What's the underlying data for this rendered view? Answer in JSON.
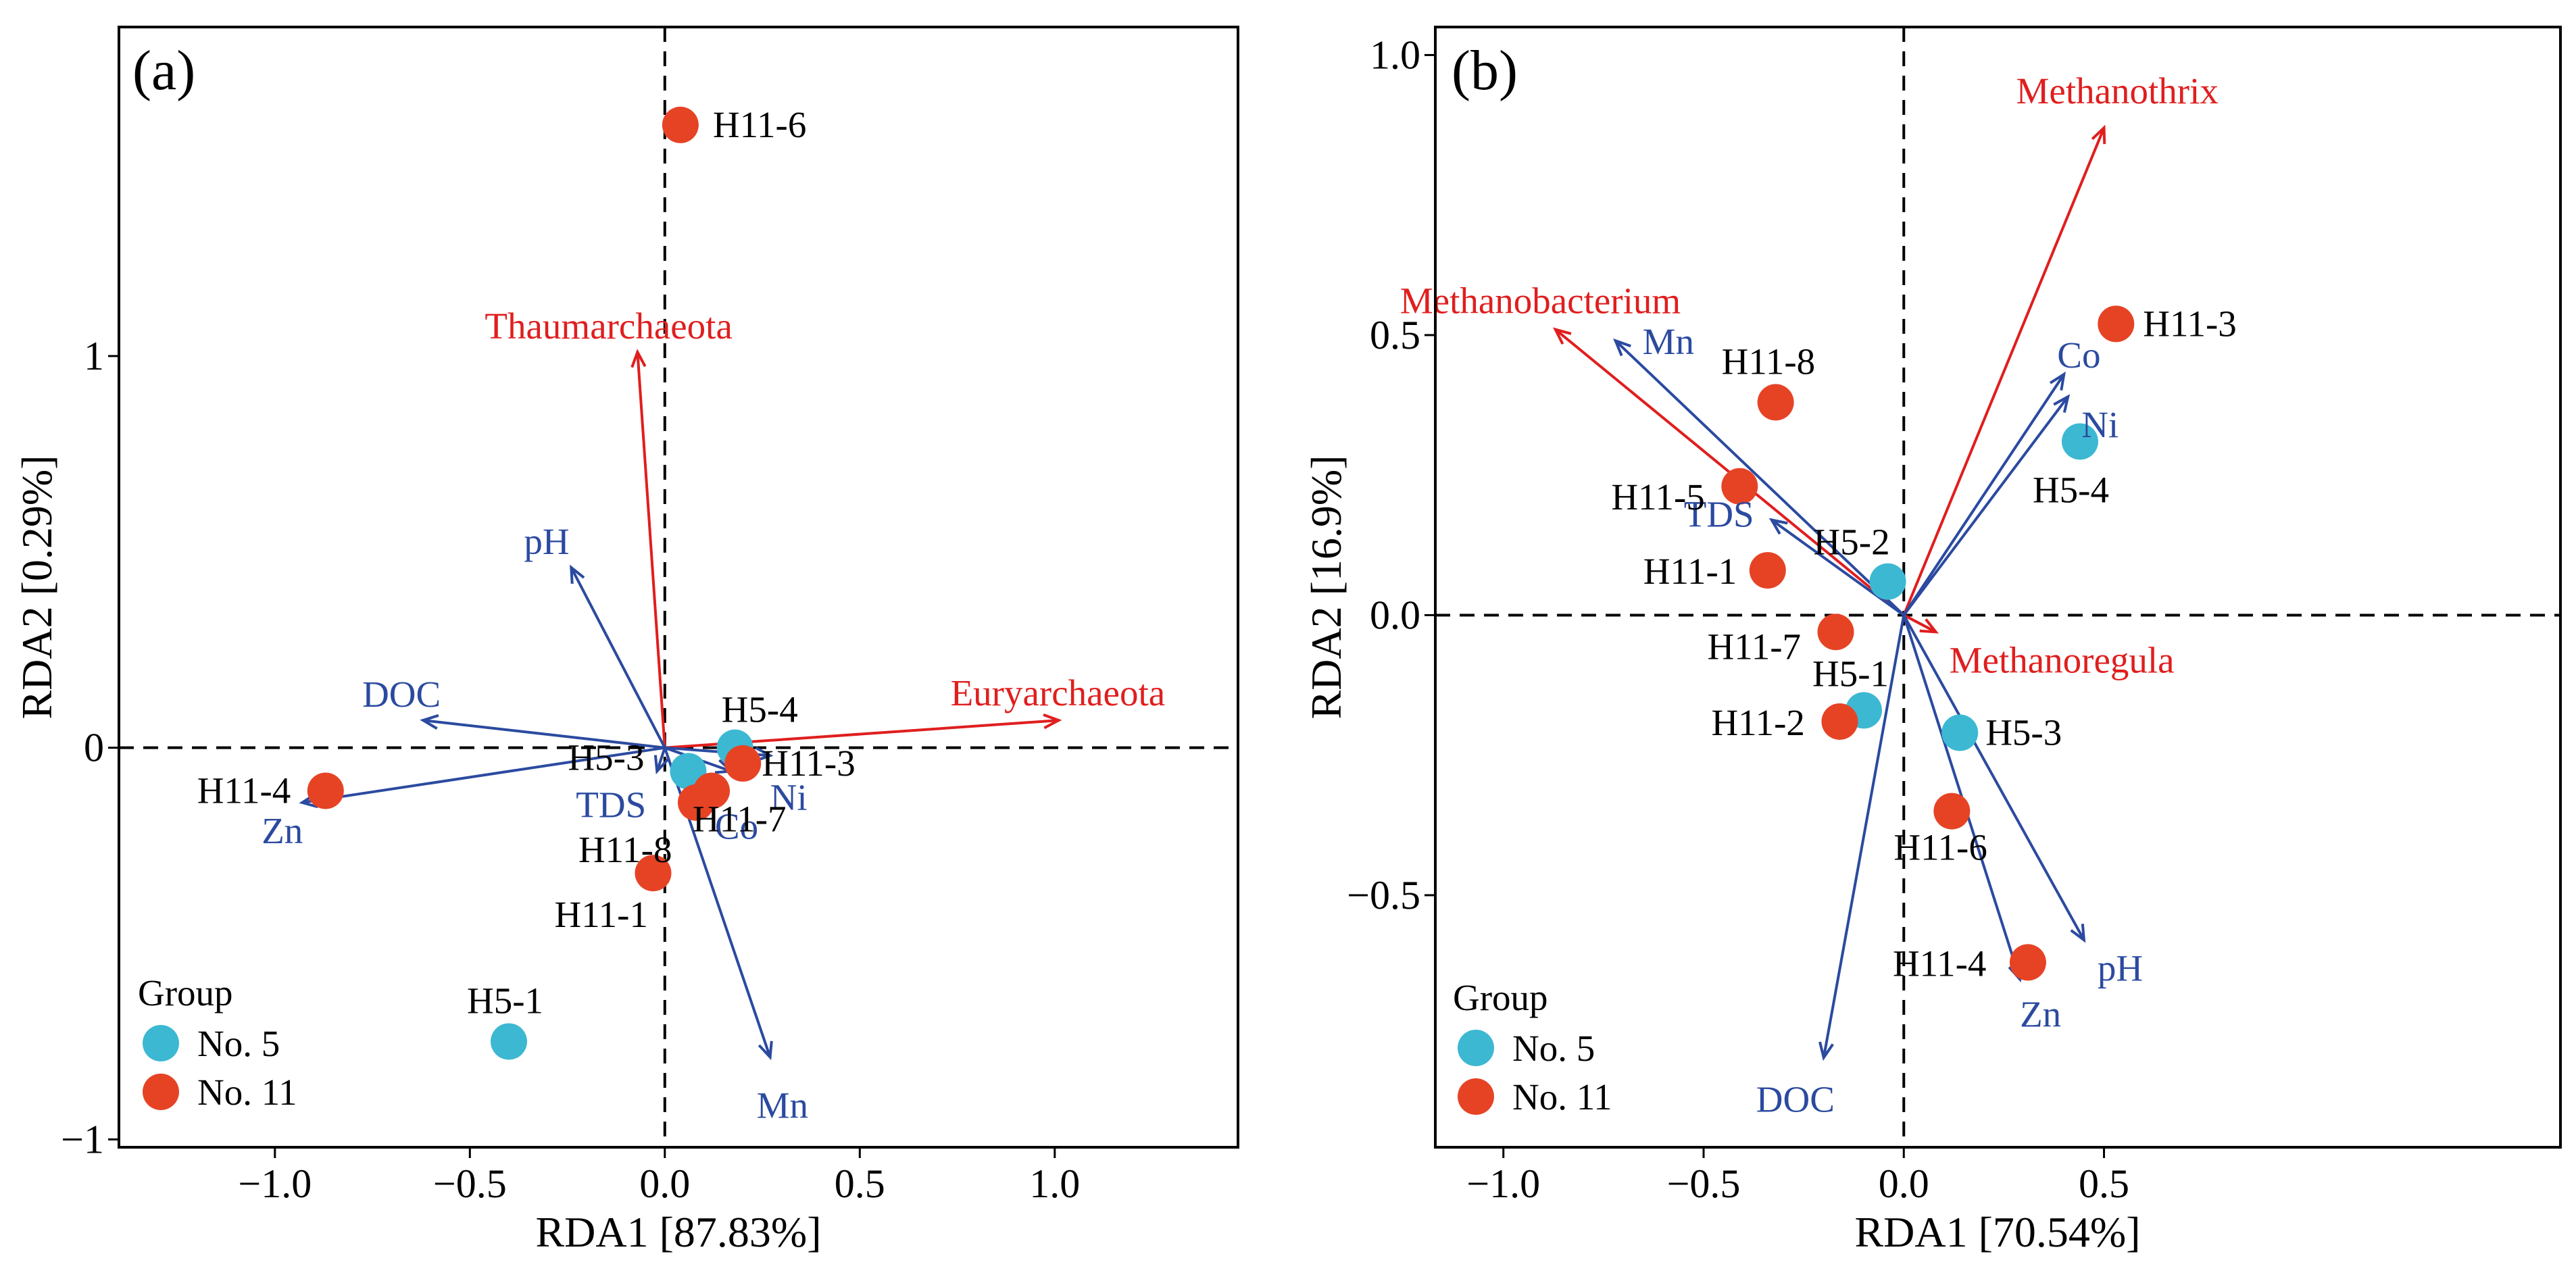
{
  "colors": {
    "group5": "#3cb8d2",
    "group11": "#e64325",
    "env_arrow": "#2b4aa0",
    "species_arrow": "#e01e1e",
    "background": "#ffffff",
    "axis": "#000000"
  },
  "chart_data": [
    {
      "type": "scatter",
      "subtype": "RDA biplot",
      "panel_label": "(a)",
      "xlabel": "RDA1 [87.83%]",
      "ylabel": "RDA2 [0.29%]",
      "xlim": [
        -1.4,
        1.47
      ],
      "ylim": [
        -1.02,
        1.84
      ],
      "xticks": [
        -1.0,
        -0.5,
        0.0,
        0.5,
        1.0
      ],
      "xtick_labels": [
        "−1.0",
        "−0.5",
        "0.0",
        "0.5",
        "1.0"
      ],
      "yticks": [
        -1,
        0,
        1
      ],
      "ytick_labels": [
        "−1",
        "0",
        "1"
      ],
      "points": [
        {
          "name": "H11-6",
          "group": "No. 11",
          "x": 0.04,
          "y": 1.59
        },
        {
          "name": "H5-4",
          "group": "No. 5",
          "x": 0.18,
          "y": 0.0
        },
        {
          "name": "H5-3",
          "group": "No. 5",
          "x": 0.06,
          "y": -0.06
        },
        {
          "name": "H11-3",
          "group": "No. 11",
          "x": 0.2,
          "y": -0.04
        },
        {
          "name": "H11-7",
          "group": "No. 11",
          "x": 0.12,
          "y": -0.11
        },
        {
          "name": "H11-8",
          "group": "No. 11",
          "x": 0.08,
          "y": -0.14
        },
        {
          "name": "H11-4",
          "group": "No. 11",
          "x": -0.87,
          "y": -0.11
        },
        {
          "name": "H11-1",
          "group": "No. 11",
          "x": -0.03,
          "y": -0.32
        },
        {
          "name": "H5-1",
          "group": "No. 5",
          "x": -0.4,
          "y": -0.75
        }
      ],
      "env_vectors": [
        {
          "name": "pH",
          "x": -0.24,
          "y": 0.46
        },
        {
          "name": "DOC",
          "x": -0.62,
          "y": 0.07
        },
        {
          "name": "Zn",
          "x": -0.93,
          "y": -0.14
        },
        {
          "name": "TDS",
          "x": -0.02,
          "y": -0.06
        },
        {
          "name": "Co",
          "x": 0.17,
          "y": -0.06
        },
        {
          "name": "Ni",
          "x": 0.27,
          "y": -0.02
        },
        {
          "name": "Mn",
          "x": 0.27,
          "y": -0.79
        }
      ],
      "species_vectors": [
        {
          "name": "Thaumarchaeota",
          "x": -0.07,
          "y": 1.01
        },
        {
          "name": "Euryarchaeota",
          "x": 1.01,
          "y": 0.07
        }
      ],
      "legend": {
        "title": "Group",
        "position": "bottom-left",
        "entries": [
          "No. 5",
          "No. 11"
        ]
      }
    },
    {
      "type": "scatter",
      "subtype": "RDA biplot",
      "panel_label": "(b)",
      "xlabel": "RDA1 [70.54%]",
      "ylabel": "RDA2 [16.9%]",
      "xlim": [
        -1.17,
        1.64
      ],
      "ylim": [
        -0.95,
        1.05
      ],
      "xticks": [
        -1.0,
        -0.5,
        0.0,
        0.5
      ],
      "xtick_labels": [
        "−1.0",
        "−0.5",
        "0.0",
        "0.5"
      ],
      "yticks": [
        -0.5,
        0.0,
        0.5,
        1.0
      ],
      "ytick_labels": [
        "−0.5",
        "0.0",
        "0.5",
        "1.0"
      ],
      "points": [
        {
          "name": "H11-3",
          "group": "No. 11",
          "x": 0.53,
          "y": 0.52
        },
        {
          "name": "H5-4",
          "group": "No. 5",
          "x": 0.44,
          "y": 0.31
        },
        {
          "name": "H11-8",
          "group": "No. 11",
          "x": -0.32,
          "y": 0.38
        },
        {
          "name": "H11-5",
          "group": "No. 11",
          "x": -0.41,
          "y": 0.23
        },
        {
          "name": "H11-1",
          "group": "No. 11",
          "x": -0.34,
          "y": 0.08
        },
        {
          "name": "H5-2",
          "group": "No. 5",
          "x": -0.04,
          "y": 0.06
        },
        {
          "name": "H11-7",
          "group": "No. 11",
          "x": -0.17,
          "y": -0.03
        },
        {
          "name": "H5-1",
          "group": "No. 5",
          "x": -0.1,
          "y": -0.17
        },
        {
          "name": "H11-2",
          "group": "No. 11",
          "x": -0.16,
          "y": -0.19
        },
        {
          "name": "H5-3",
          "group": "No. 5",
          "x": 0.14,
          "y": -0.21
        },
        {
          "name": "H11-6",
          "group": "No. 11",
          "x": 0.12,
          "y": -0.35
        },
        {
          "name": "H11-4",
          "group": "No. 11",
          "x": 0.31,
          "y": -0.62
        }
      ],
      "env_vectors": [
        {
          "name": "Mn",
          "x": -0.72,
          "y": 0.49
        },
        {
          "name": "TDS",
          "x": -0.33,
          "y": 0.17
        },
        {
          "name": "Co",
          "x": 0.4,
          "y": 0.43
        },
        {
          "name": "Ni",
          "x": 0.41,
          "y": 0.39
        },
        {
          "name": "pH",
          "x": 0.45,
          "y": -0.58
        },
        {
          "name": "Zn",
          "x": 0.29,
          "y": -0.65
        },
        {
          "name": "DOC",
          "x": -0.2,
          "y": -0.79
        }
      ],
      "species_vectors": [
        {
          "name": "Methanothrix",
          "x": 0.5,
          "y": 0.87
        },
        {
          "name": "Methanobacterium",
          "x": -0.87,
          "y": 0.51
        },
        {
          "name": "Methanoregula",
          "x": 0.08,
          "y": -0.03
        }
      ],
      "legend": {
        "title": "Group",
        "position": "bottom-left",
        "entries": [
          "No. 5",
          "No. 11"
        ]
      }
    }
  ]
}
